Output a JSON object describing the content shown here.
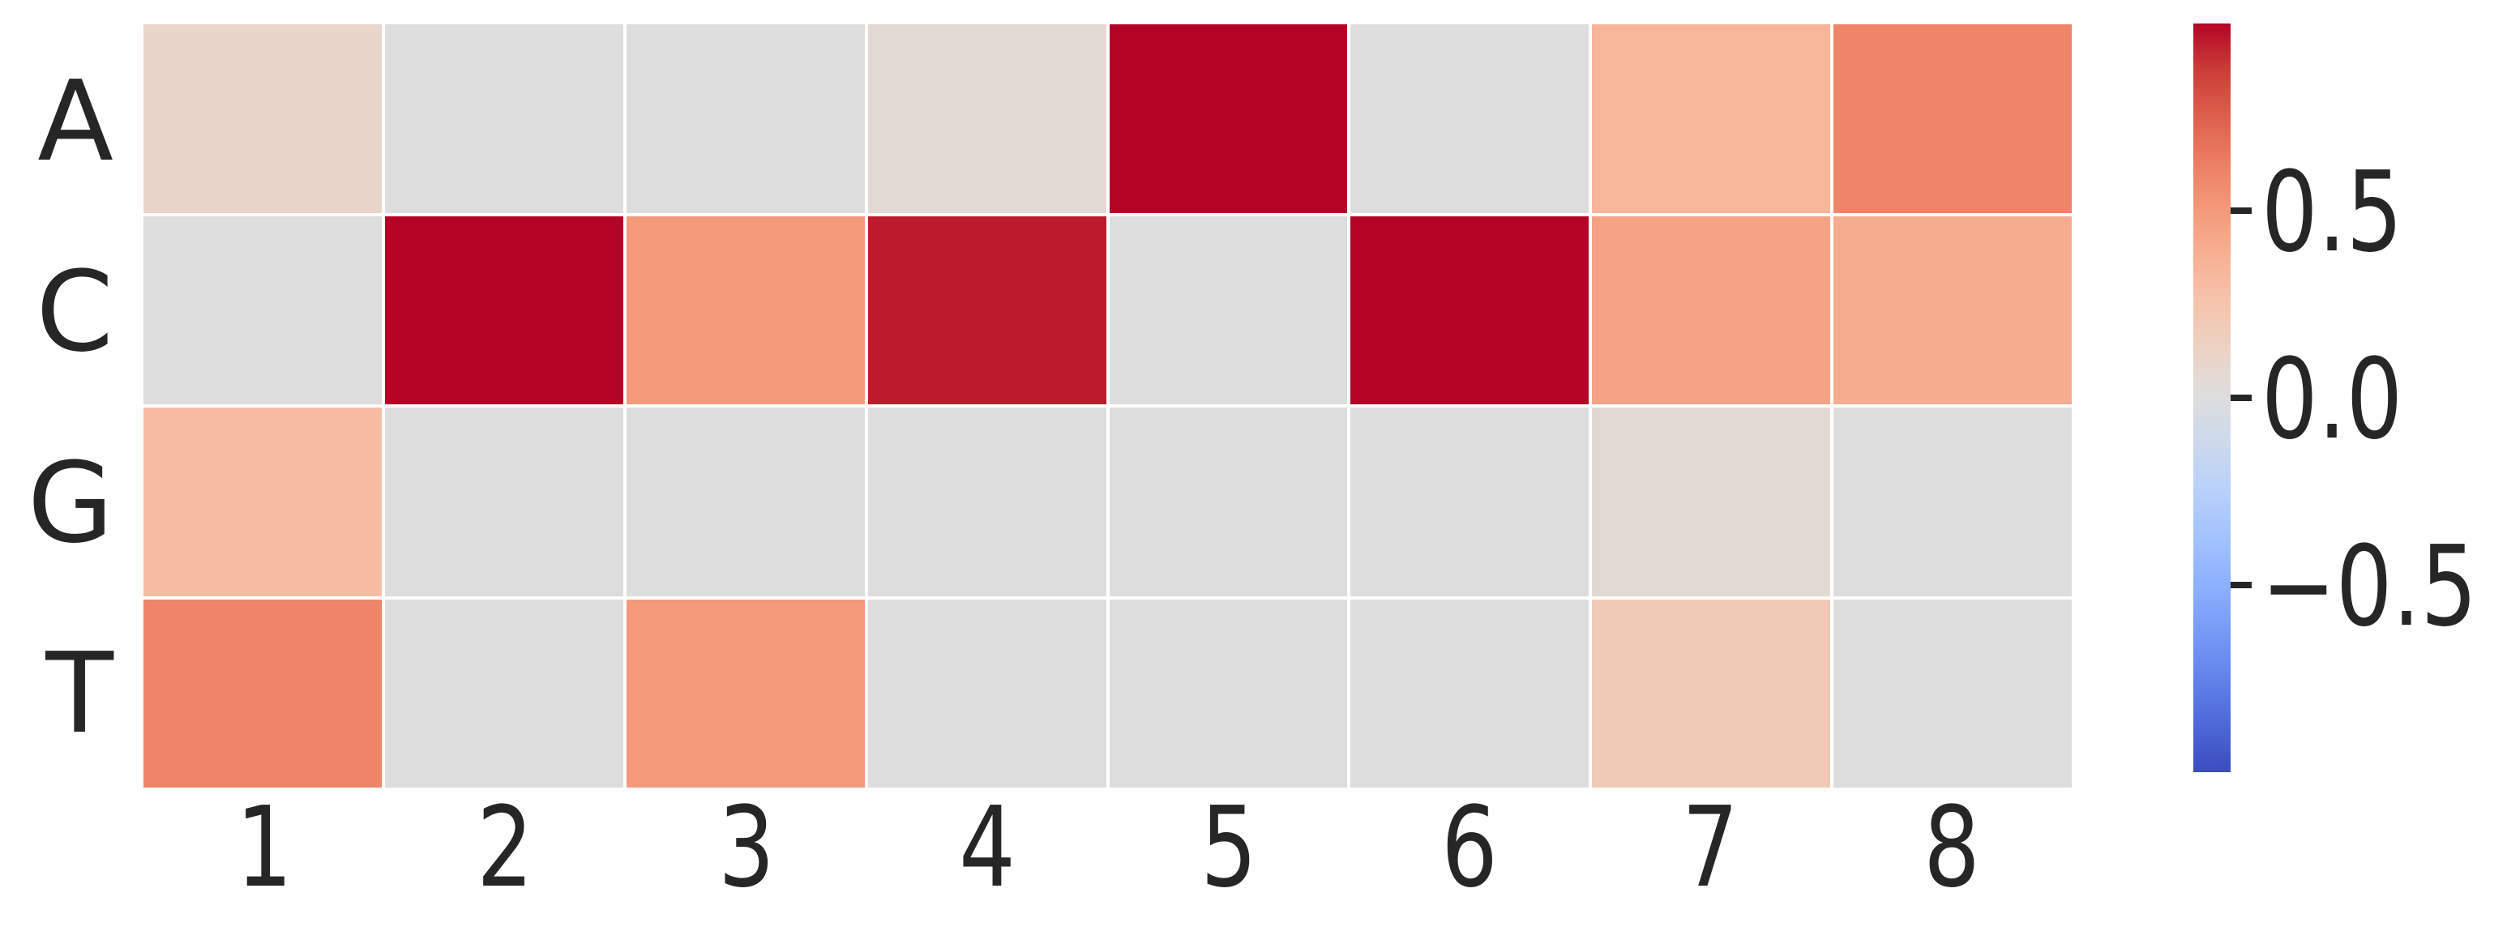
{
  "figure": {
    "background": "#ffffff",
    "text_color": "#262626"
  },
  "chart_data": {
    "type": "heatmap",
    "title": "",
    "x_tick_labels": [
      "1",
      "2",
      "3",
      "4",
      "5",
      "6",
      "7",
      "8"
    ],
    "y_tick_labels": [
      "A",
      "C",
      "G",
      "T"
    ],
    "values": [
      [
        0.1,
        0.0,
        0.0,
        0.05,
        1.0,
        0.0,
        0.35,
        0.6
      ],
      [
        0.0,
        1.0,
        0.5,
        0.95,
        0.0,
        1.0,
        0.45,
        0.4
      ],
      [
        0.3,
        0.0,
        0.0,
        0.0,
        0.0,
        0.0,
        0.05,
        0.0
      ],
      [
        0.6,
        0.0,
        0.5,
        0.0,
        0.0,
        0.0,
        0.2,
        0.0
      ]
    ],
    "vmin": -1.0,
    "vmax": 1.0,
    "colormap": "coolwarm",
    "colormap_hex": {
      "min": "#3b4cc0",
      "mid": "#dddddd",
      "max": "#b40426"
    },
    "cell_gridline_color": "#ffffff",
    "legend_position": "right",
    "grid": "off",
    "colorbar": {
      "position": "right",
      "ticks": [
        {
          "value": 0.5,
          "label": "0.5"
        },
        {
          "value": 0.0,
          "label": "0.0"
        },
        {
          "value": -0.5,
          "label": "−0.5"
        }
      ]
    }
  }
}
